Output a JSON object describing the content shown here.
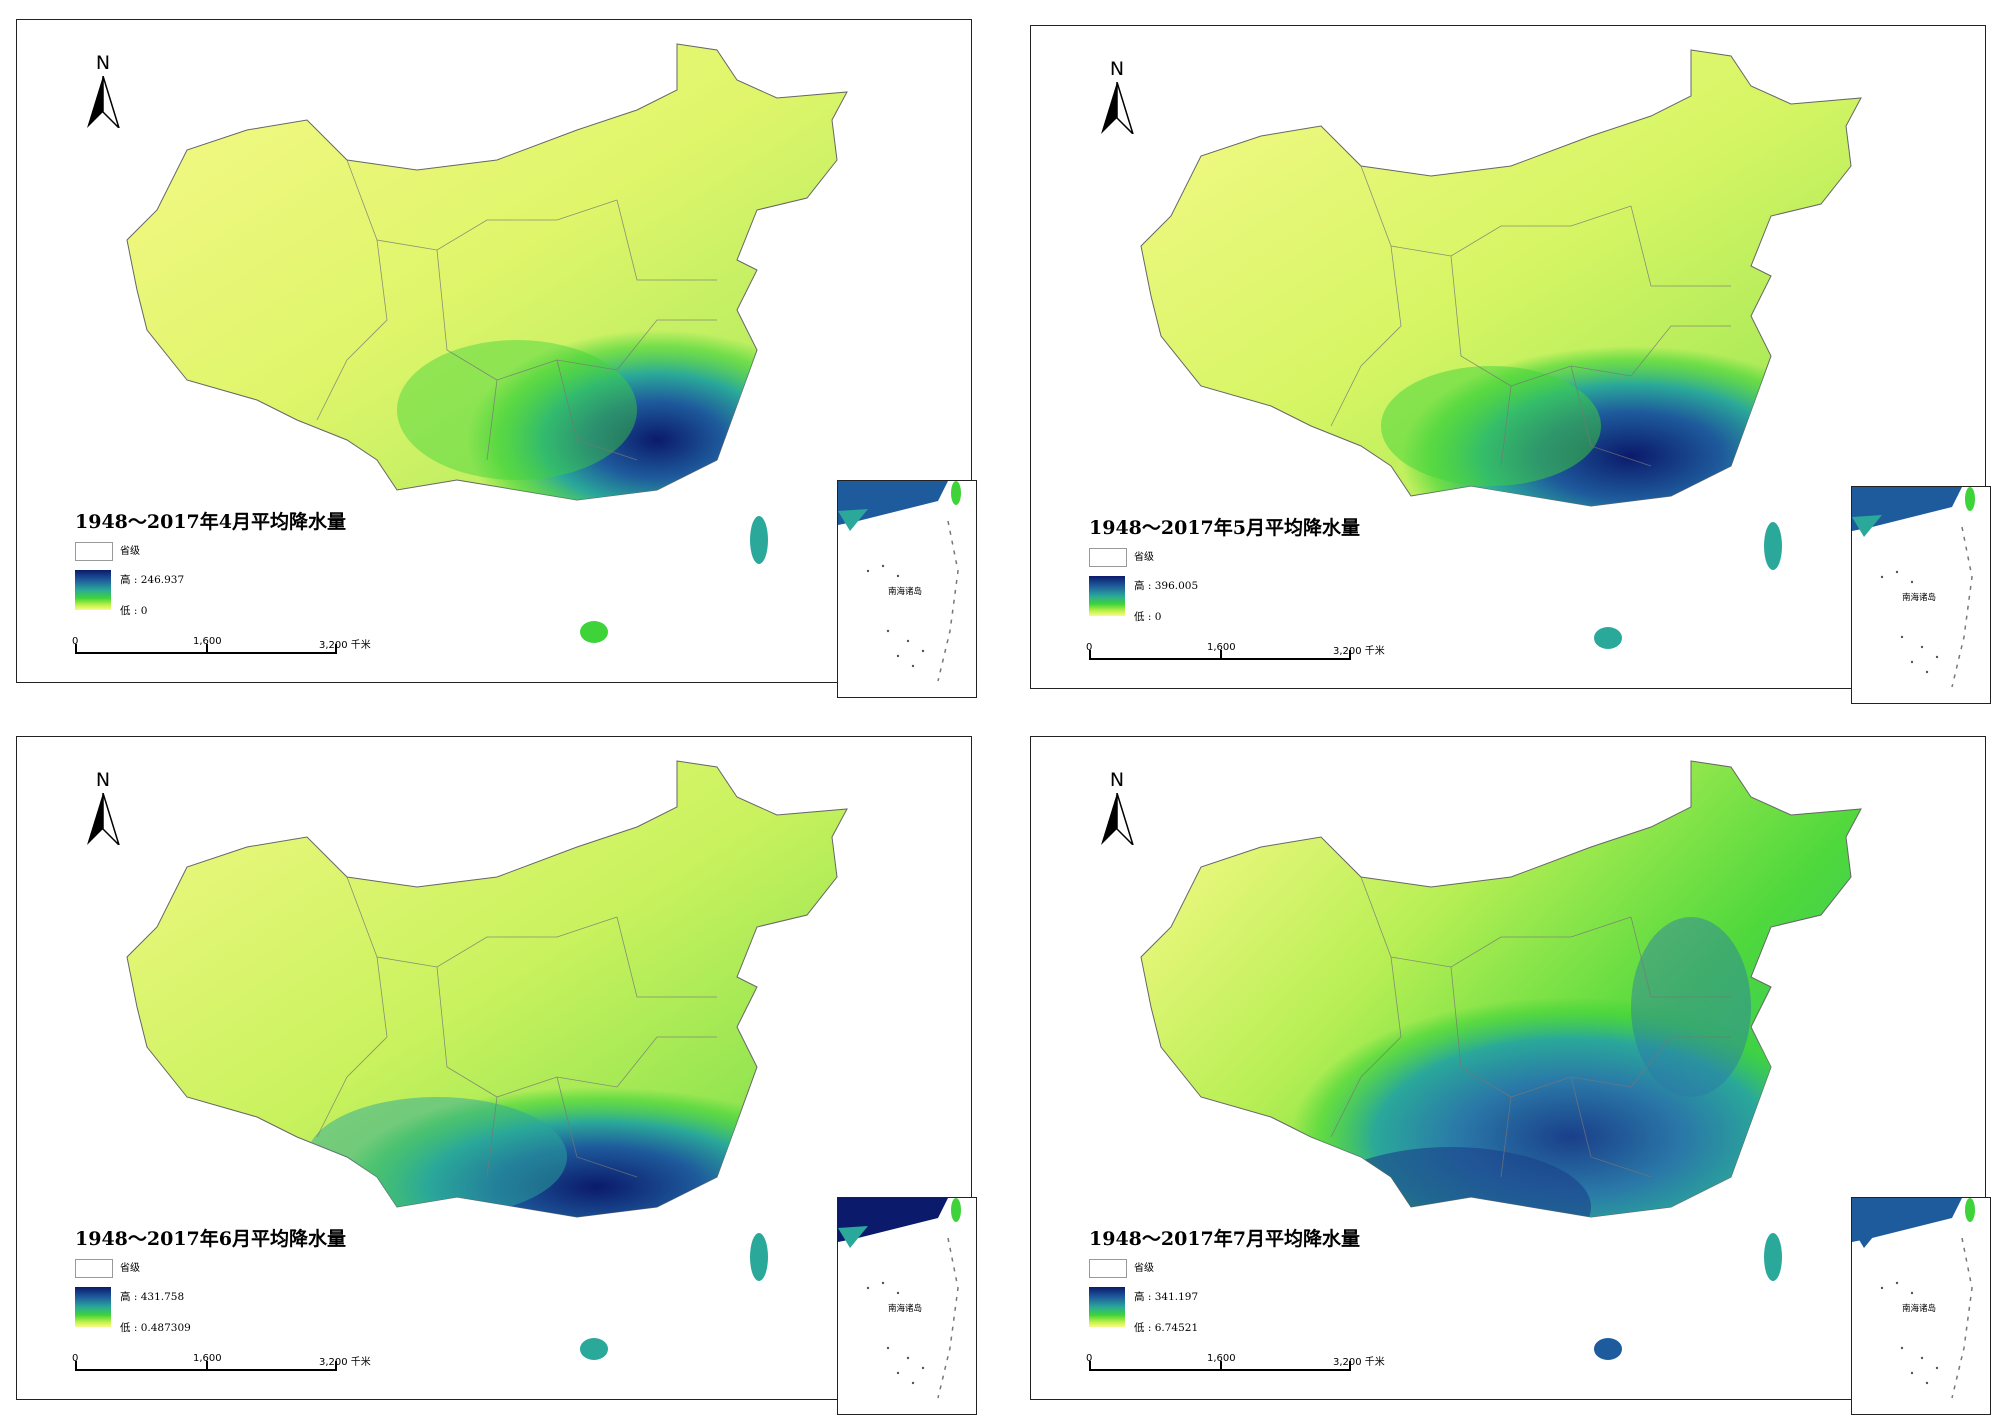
{
  "panels": [
    {
      "id": "april",
      "title": "1948～2017年4月平均降水量",
      "legend_province": "省级",
      "legend_high": "高 : 246.937",
      "legend_low": "低 : 0",
      "inset_label": "南海诸岛",
      "scale_labels": [
        "0",
        "1,600",
        "3,200 千米"
      ],
      "north_label": "N",
      "wet_intensity": 0.85,
      "wet_extent": "southeast"
    },
    {
      "id": "may",
      "title": "1948～2017年5月平均降水量",
      "legend_province": "省级",
      "legend_high": "高 : 396.005",
      "legend_low": "低 : 0",
      "inset_label": "南海诸岛",
      "scale_labels": [
        "0",
        "1,600",
        "3,200 千米"
      ],
      "north_label": "N",
      "wet_intensity": 0.9,
      "wet_extent": "south"
    },
    {
      "id": "june",
      "title": "1948～2017年6月平均降水量",
      "legend_province": "省级",
      "legend_high": "高 : 431.758",
      "legend_low": "低 : 0.487309",
      "inset_label": "南海诸岛",
      "scale_labels": [
        "0",
        "1,600",
        "3,200 千米"
      ],
      "north_label": "N",
      "wet_intensity": 0.9,
      "wet_extent": "south"
    },
    {
      "id": "july",
      "title": "1948～2017年7月平均降水量",
      "legend_province": "省级",
      "legend_high": "高 : 341.197",
      "legend_low": "低 : 6.74521",
      "inset_label": "南海诸岛",
      "scale_labels": [
        "0",
        "1,600",
        "3,200 千米"
      ],
      "north_label": "N",
      "wet_intensity": 0.75,
      "wet_extent": "east-wide"
    }
  ],
  "colors": {
    "ramp_high": "#0b1a6b",
    "ramp_mid_blue": "#1e5b9c",
    "ramp_teal": "#2aa89a",
    "ramp_green": "#3fd33a",
    "ramp_lime": "#c3f24a",
    "ramp_low": "#fafa8a",
    "border": "#555555"
  }
}
